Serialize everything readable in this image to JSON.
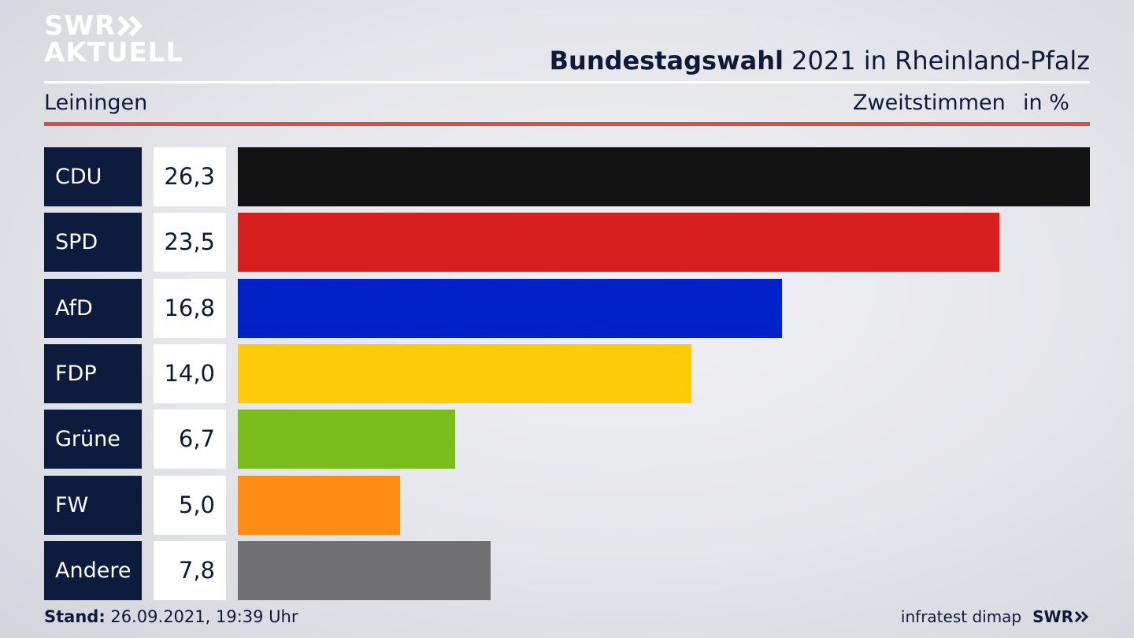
{
  "header": {
    "logo_line1": "SWR",
    "logo_line2": "AKTUELL",
    "title_bold": "Bundestagswahl",
    "title_rest": " 2021 in Rheinland-Pfalz",
    "region": "Leiningen",
    "measure": "Zweitstimmen",
    "unit": "in %"
  },
  "colors": {
    "CDU": "#121212",
    "SPD": "#d81f20",
    "AfD": "#0121c8",
    "FDP": "#ffcb0a",
    "Grüne": "#79bd1d",
    "FW": "#ff8c17",
    "Andere": "#717173"
  },
  "chart_data": {
    "type": "bar",
    "orientation": "horizontal",
    "categories": [
      "CDU",
      "SPD",
      "AfD",
      "FDP",
      "Grüne",
      "FW",
      "Andere"
    ],
    "values": [
      26.3,
      23.5,
      16.8,
      14.0,
      6.7,
      5.0,
      7.8
    ],
    "value_labels": [
      "26,3",
      "23,5",
      "16,8",
      "14,0",
      "6,7",
      "5,0",
      "7,8"
    ],
    "title": "Bundestagswahl 2021 in Rheinland-Pfalz",
    "xlabel": "Zweitstimmen",
    "ylabel": "",
    "xlim": [
      0,
      26.3
    ],
    "grid": false
  },
  "footer": {
    "stand_label": "Stand:",
    "stand_value": " 26.09.2021, 19:39 Uhr",
    "source": "infratest dimap",
    "brand": "SWR"
  }
}
